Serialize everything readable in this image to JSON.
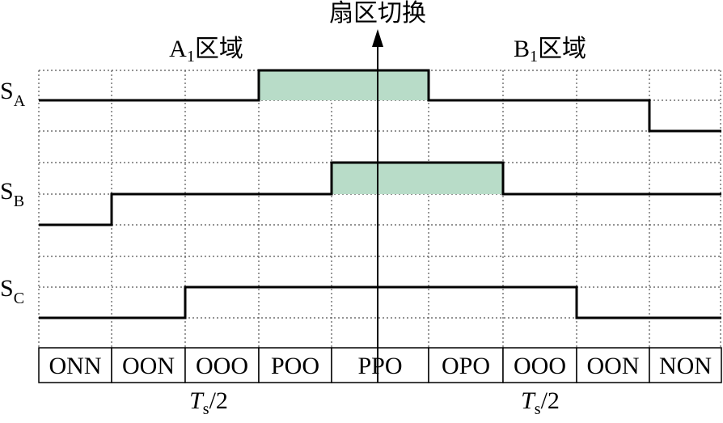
{
  "title": "扇区切换",
  "regions": [
    {
      "main": "A",
      "sub": "1",
      "rest": "区域"
    },
    {
      "main": "B",
      "sub": "1",
      "rest": "区域"
    }
  ],
  "signals": [
    {
      "main": "S",
      "sub": "A"
    },
    {
      "main": "S",
      "sub": "B"
    },
    {
      "main": "S",
      "sub": "C"
    }
  ],
  "states": [
    "ONN",
    "OON",
    "OOO",
    "POO",
    "PPO",
    "OPO",
    "OOO",
    "OON",
    "NON"
  ],
  "period_labels": [
    {
      "main": "T",
      "sub": "s",
      "rest": "/2"
    },
    {
      "main": "T",
      "sub": "s",
      "rest": "/2"
    }
  ]
}
